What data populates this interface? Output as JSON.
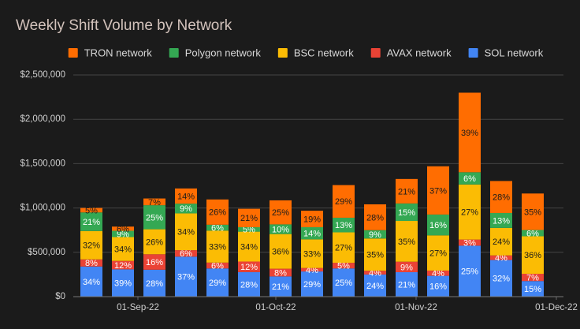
{
  "chart_data": {
    "type": "stacked_bar",
    "title": "Weekly Shift Volume by Network",
    "categories": [
      null,
      null,
      null,
      null,
      null,
      null,
      null,
      null,
      null,
      null,
      null,
      null,
      null,
      null,
      null
    ],
    "xlim": [
      -0.575,
      14.975
    ],
    "xticks": [
      {
        "value": 1.475,
        "label": "01-Sep-22"
      },
      {
        "value": 5.85,
        "label": "01-Oct-22"
      },
      {
        "value": 10.3,
        "label": "01-Nov-22"
      },
      {
        "value": 14.75,
        "label": "01-Dec-22"
      }
    ],
    "ylim": [
      0,
      2500000
    ],
    "yticks": [
      {
        "value": 0,
        "label": "$0"
      },
      {
        "value": 500000,
        "label": "$500,000"
      },
      {
        "value": 1000000,
        "label": "$1,000,000"
      },
      {
        "value": 1500000,
        "label": "$1,500,000"
      },
      {
        "value": 2000000,
        "label": "$2,000,000"
      },
      {
        "value": 2500000,
        "label": "$2,500,000"
      }
    ],
    "grid": true,
    "legend": "top",
    "series": [
      {
        "name": "TRON network",
        "color": "#ff6d01",
        "label_color": "#1b1b1b",
        "values": [
          50000,
          47000,
          76000,
          171000,
          285000,
          208000,
          271000,
          186000,
          368000,
          291000,
          276000,
          544000,
          897000,
          361000,
          411000
        ],
        "value_labels": [
          "5%",
          "6%",
          "7%",
          "14%",
          "26%",
          "21%",
          "25%",
          "19%",
          "29%",
          "28%",
          "21%",
          "37%",
          "39%",
          "28%",
          "35%"
        ]
      },
      {
        "name": "Polygon network",
        "color": "#34a853",
        "label_color": "#ffffff",
        "values": [
          210000,
          71000,
          271000,
          110000,
          66000,
          50000,
          109000,
          137000,
          165000,
          94000,
          197000,
          235000,
          138000,
          168000,
          71000
        ],
        "value_labels": [
          "21%",
          "9%",
          "25%",
          "9%",
          "6%",
          "5%",
          "10%",
          "14%",
          "13%",
          "9%",
          "15%",
          "16%",
          "6%",
          "13%",
          "6%"
        ]
      },
      {
        "name": "BSC network",
        "color": "#fbbc04",
        "label_color": "#1b1b1b",
        "values": [
          320000,
          269000,
          282000,
          415000,
          361000,
          337000,
          391000,
          323000,
          343000,
          364000,
          460000,
          397000,
          621000,
          310000,
          423000
        ],
        "value_labels": [
          "32%",
          "34%",
          "26%",
          "34%",
          "33%",
          "34%",
          "36%",
          "33%",
          "27%",
          "35%",
          "35%",
          "27%",
          "27%",
          "24%",
          "36%"
        ]
      },
      {
        "name": "AVAX network",
        "color": "#ea4335",
        "label_color": "#ffffff",
        "values": [
          80000,
          95000,
          174000,
          73000,
          66000,
          119000,
          87000,
          39000,
          64000,
          42000,
          118000,
          59000,
          69000,
          52000,
          82000
        ],
        "value_labels": [
          "8%",
          "12%",
          "16%",
          "6%",
          "6%",
          "12%",
          "8%",
          "4%",
          "5%",
          "4%",
          "9%",
          "4%",
          "3%",
          "4%",
          "7%"
        ]
      },
      {
        "name": "SOL network",
        "color": "#4285f4",
        "label_color": "#ffffff",
        "values": [
          340000,
          308000,
          304000,
          451000,
          318000,
          277000,
          228000,
          284000,
          318000,
          250000,
          276000,
          235000,
          575000,
          413000,
          176000
        ],
        "value_labels": [
          "34%",
          "39%",
          "28%",
          "37%",
          "29%",
          "28%",
          "21%",
          "29%",
          "25%",
          "24%",
          "21%",
          "16%",
          "25%",
          "32%",
          "15%"
        ]
      }
    ]
  }
}
